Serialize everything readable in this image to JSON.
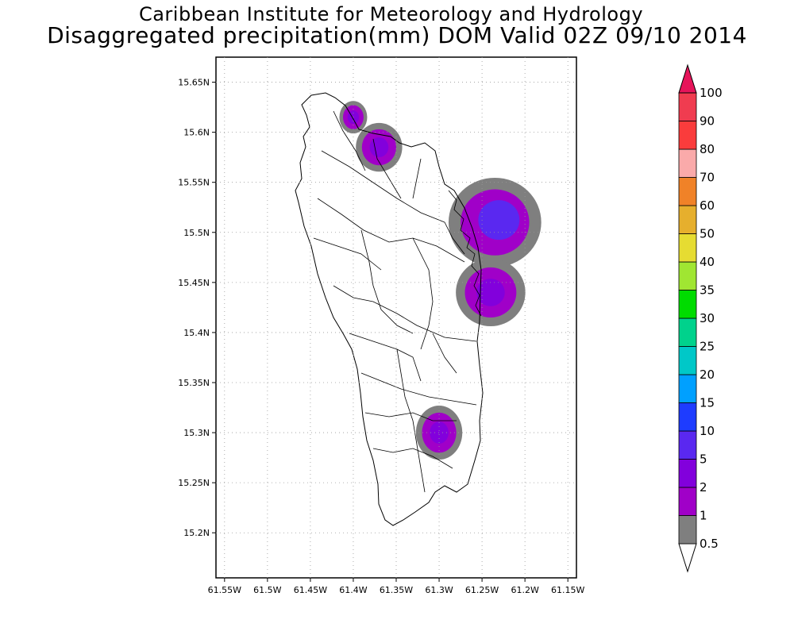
{
  "header": {
    "title": "Caribbean Institute for Meteorology and Hydrology",
    "subtitle": "Disaggregated precipitation(mm) DOM Valid 02Z 09/10 2014"
  },
  "map": {
    "region": "Dominica",
    "lon_range": [
      -61.56,
      -61.14
    ],
    "lat_range": [
      15.155,
      15.675
    ],
    "x_ticks": [
      "61.55W",
      "61.5W",
      "61.45W",
      "61.4W",
      "61.35W",
      "61.3W",
      "61.25W",
      "61.2W",
      "61.15W"
    ],
    "x_tick_values": [
      -61.55,
      -61.5,
      -61.45,
      -61.4,
      -61.35,
      -61.3,
      -61.25,
      -61.2,
      -61.15
    ],
    "y_ticks": [
      "15.65N",
      "15.6N",
      "15.55N",
      "15.5N",
      "15.45N",
      "15.4N",
      "15.35N",
      "15.3N",
      "15.25N",
      "15.2N"
    ],
    "y_tick_values": [
      15.65,
      15.6,
      15.55,
      15.5,
      15.45,
      15.4,
      15.35,
      15.3,
      15.25,
      15.2
    ],
    "grid": true,
    "precip_cells": [
      {
        "lon": -61.4,
        "lat": 15.615,
        "r_lon": 0.012,
        "r_lat": 0.012,
        "level": 2
      },
      {
        "lon": -61.37,
        "lat": 15.585,
        "r_lon": 0.02,
        "r_lat": 0.018,
        "level": 2
      },
      {
        "lon": -61.235,
        "lat": 15.51,
        "r_lon": 0.04,
        "r_lat": 0.033,
        "level": 5
      },
      {
        "lon": -61.24,
        "lat": 15.44,
        "r_lon": 0.03,
        "r_lat": 0.025,
        "level": 2
      },
      {
        "lon": -61.3,
        "lat": 15.3,
        "r_lon": 0.02,
        "r_lat": 0.02,
        "level": 2
      }
    ]
  },
  "colorbar": {
    "labels": [
      "0.5",
      "1",
      "2",
      "5",
      "10",
      "15",
      "20",
      "25",
      "30",
      "35",
      "40",
      "50",
      "60",
      "70",
      "80",
      "90",
      "100"
    ],
    "colors": [
      "#7f7f7f",
      "#a000c8",
      "#8200dc",
      "#5a28f0",
      "#1e3cff",
      "#00a0ff",
      "#00c8c8",
      "#00d28c",
      "#00dc00",
      "#a0e632",
      "#e6dc32",
      "#e6af2d",
      "#f08228",
      "#faaaaa",
      "#fa3c3c",
      "#f03c50",
      "#e6145a"
    ],
    "top_arrow_color": "#e6145a"
  }
}
